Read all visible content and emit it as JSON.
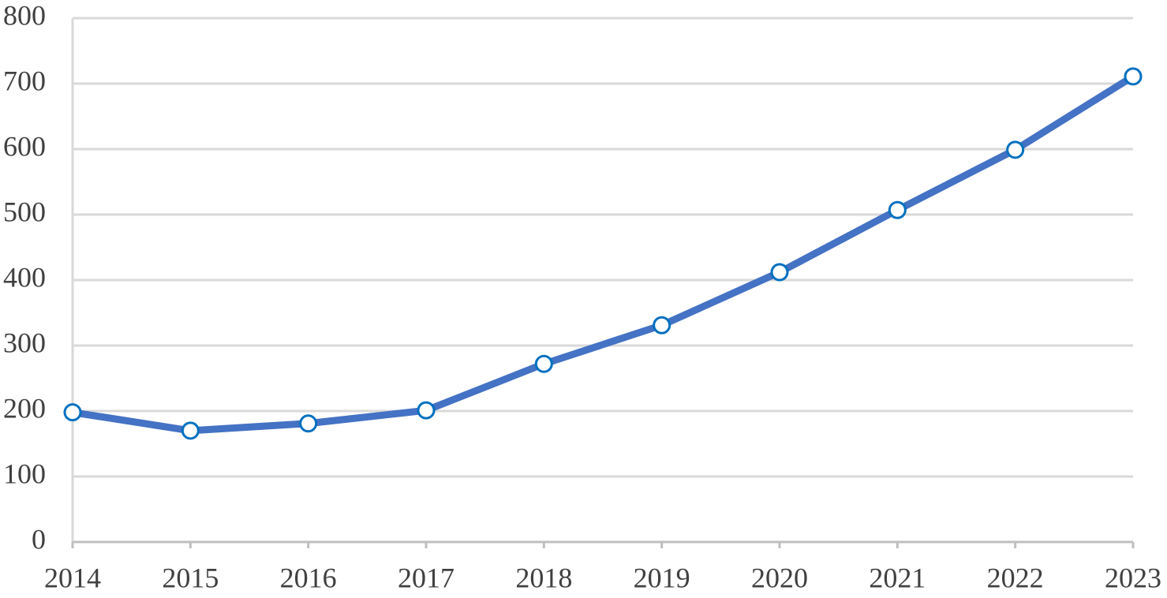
{
  "chart_data": {
    "type": "line",
    "x": [
      2014,
      2015,
      2016,
      2017,
      2018,
      2019,
      2020,
      2021,
      2022,
      2023
    ],
    "series": [
      {
        "color": "#4472c4",
        "marker_color": "#0070c0",
        "values": [
          198,
          170,
          181,
          201,
          272,
          331,
          412,
          507,
          599,
          711
        ]
      }
    ],
    "xlim": [
      2014,
      2023
    ],
    "xticks": [
      2014,
      2015,
      2016,
      2017,
      2018,
      2019,
      2020,
      2021,
      2022,
      2023
    ],
    "ylim": [
      0,
      800
    ],
    "yticks": [
      0,
      100,
      200,
      300,
      400,
      500,
      600,
      700,
      800
    ],
    "grid": true
  }
}
